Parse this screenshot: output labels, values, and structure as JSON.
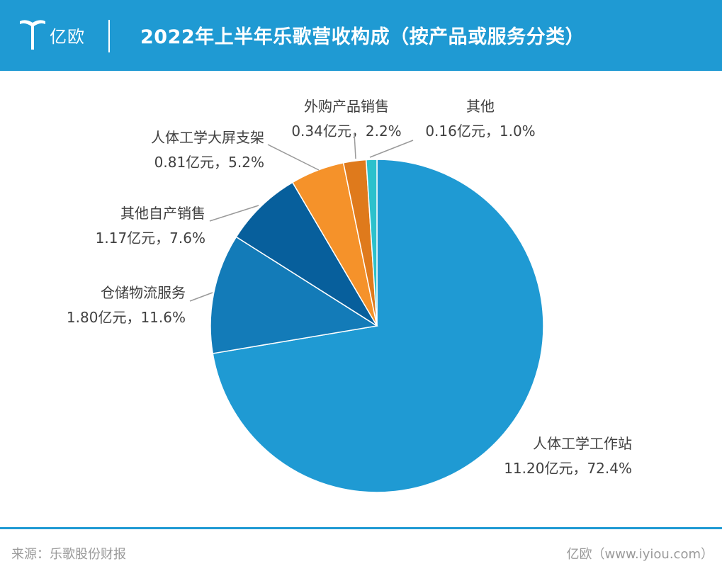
{
  "header": {
    "logo_text": "亿欧",
    "title": "2022年上半年乐歌营收构成（按产品或服务分类）"
  },
  "footer": {
    "source": "来源：乐歌股份财报",
    "site": "亿欧（www.iyiou.com）"
  },
  "colors": {
    "header_bg": "#1f9ad3",
    "footer_text": "#9a9a9a",
    "label_text": "#404040"
  },
  "chart_data": {
    "type": "pie",
    "unit": "亿元",
    "slices": [
      {
        "name": "人体工学工作站",
        "value": 11.2,
        "percent": "72.4%",
        "label_value": "11.20亿元，72.4%",
        "color": "#1f9ad3"
      },
      {
        "name": "仓储物流服务",
        "value": 1.8,
        "percent": "11.6%",
        "label_value": "1.80亿元，11.6%",
        "color": "#137bb8"
      },
      {
        "name": "其他自产销售",
        "value": 1.17,
        "percent": "7.6%",
        "label_value": "1.17亿元，7.6%",
        "color": "#075f9c"
      },
      {
        "name": "人体工学大屏支架",
        "value": 0.81,
        "percent": "5.2%",
        "label_value": "0.81亿元，5.2%",
        "color": "#f5922a"
      },
      {
        "name": "外购产品销售",
        "value": 0.34,
        "percent": "2.2%",
        "label_value": "0.34亿元，2.2%",
        "color": "#df7a1c"
      },
      {
        "name": "其他",
        "value": 0.16,
        "percent": "1.0%",
        "label_value": "0.16亿元，1.0%",
        "color": "#2cc1cc"
      }
    ]
  }
}
